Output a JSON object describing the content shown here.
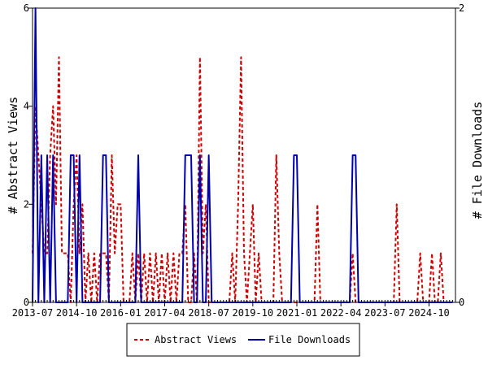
{
  "chart_data": {
    "type": "line",
    "title": "",
    "xlabel": "",
    "ylabel_left": "# Abstract Views",
    "ylabel_right": "# File Downloads",
    "x_ticks": [
      "2013-07",
      "2014-10",
      "2016-01",
      "2017-04",
      "2018-07",
      "2019-10",
      "2021-01",
      "2022-04",
      "2023-07",
      "2024-10"
    ],
    "x_range": [
      "2013-07",
      "2025-07"
    ],
    "ylim_left": [
      0,
      6
    ],
    "yticks_left": [
      "0",
      "2",
      "4",
      "6"
    ],
    "ylim_right": [
      0,
      2
    ],
    "yticks_right": [
      "0",
      "2"
    ],
    "grid": false,
    "legend_position": "bottom-center",
    "legend": [
      "Abstract Views",
      "File Downloads"
    ],
    "series": [
      {
        "name": "Abstract Views",
        "axis": "left",
        "color": "#cc0000",
        "style": "dashed",
        "points": [
          [
            "2013-07",
            1
          ],
          [
            "2013-08",
            4
          ],
          [
            "2013-09",
            3
          ],
          [
            "2013-10",
            2
          ],
          [
            "2013-11",
            1
          ],
          [
            "2013-12",
            1
          ],
          [
            "2014-01",
            3
          ],
          [
            "2014-02",
            4
          ],
          [
            "2014-03",
            2
          ],
          [
            "2014-04",
            5
          ],
          [
            "2014-05",
            1
          ],
          [
            "2014-06",
            1
          ],
          [
            "2014-07",
            1
          ],
          [
            "2014-08",
            0
          ],
          [
            "2014-09",
            2
          ],
          [
            "2014-10",
            3
          ],
          [
            "2014-11",
            1
          ],
          [
            "2014-12",
            2
          ],
          [
            "2015-01",
            0
          ],
          [
            "2015-02",
            1
          ],
          [
            "2015-03",
            0
          ],
          [
            "2015-04",
            1
          ],
          [
            "2015-05",
            0
          ],
          [
            "2015-06",
            1
          ],
          [
            "2015-07",
            1
          ],
          [
            "2015-08",
            1
          ],
          [
            "2015-09",
            0
          ],
          [
            "2015-10",
            3
          ],
          [
            "2015-11",
            1
          ],
          [
            "2015-12",
            2
          ],
          [
            "2016-01",
            2
          ],
          [
            "2016-02",
            0
          ],
          [
            "2016-03",
            0
          ],
          [
            "2016-04",
            0
          ],
          [
            "2016-05",
            1
          ],
          [
            "2016-06",
            0
          ],
          [
            "2016-07",
            1
          ],
          [
            "2016-08",
            0
          ],
          [
            "2016-09",
            1
          ],
          [
            "2016-10",
            0
          ],
          [
            "2016-11",
            1
          ],
          [
            "2016-12",
            0
          ],
          [
            "2017-01",
            1
          ],
          [
            "2017-02",
            0
          ],
          [
            "2017-03",
            1
          ],
          [
            "2017-04",
            0
          ],
          [
            "2017-05",
            1
          ],
          [
            "2017-06",
            0
          ],
          [
            "2017-07",
            1
          ],
          [
            "2017-08",
            0
          ],
          [
            "2017-09",
            1
          ],
          [
            "2017-10",
            1
          ],
          [
            "2017-11",
            2
          ],
          [
            "2017-12",
            0
          ],
          [
            "2018-01",
            0
          ],
          [
            "2018-02",
            1
          ],
          [
            "2018-03",
            0
          ],
          [
            "2018-04",
            5
          ],
          [
            "2018-05",
            1
          ],
          [
            "2018-06",
            2
          ],
          [
            "2018-07",
            0
          ],
          [
            "2018-08",
            0
          ],
          [
            "2018-09",
            0
          ],
          [
            "2018-10",
            0
          ],
          [
            "2018-11",
            0
          ],
          [
            "2018-12",
            0
          ],
          [
            "2019-01",
            0
          ],
          [
            "2019-02",
            0
          ],
          [
            "2019-03",
            1
          ],
          [
            "2019-04",
            0
          ],
          [
            "2019-05",
            2
          ],
          [
            "2019-06",
            5
          ],
          [
            "2019-07",
            1
          ],
          [
            "2019-08",
            0
          ],
          [
            "2019-09",
            1
          ],
          [
            "2019-10",
            2
          ],
          [
            "2019-11",
            0
          ],
          [
            "2019-12",
            1
          ],
          [
            "2020-01",
            0
          ],
          [
            "2020-02",
            0
          ],
          [
            "2020-03",
            0
          ],
          [
            "2020-04",
            0
          ],
          [
            "2020-05",
            0
          ],
          [
            "2020-06",
            3
          ],
          [
            "2020-07",
            1
          ],
          [
            "2020-08",
            0
          ],
          [
            "2020-09",
            0
          ],
          [
            "2020-10",
            0
          ],
          [
            "2020-11",
            0
          ],
          [
            "2020-12",
            0
          ],
          [
            "2021-01",
            0
          ],
          [
            "2021-02",
            0
          ],
          [
            "2021-03",
            0
          ],
          [
            "2021-04",
            0
          ],
          [
            "2021-05",
            0
          ],
          [
            "2021-06",
            0
          ],
          [
            "2021-07",
            0
          ],
          [
            "2021-08",
            2
          ],
          [
            "2021-09",
            0
          ],
          [
            "2021-10",
            0
          ],
          [
            "2021-11",
            0
          ],
          [
            "2021-12",
            0
          ],
          [
            "2022-01",
            0
          ],
          [
            "2022-02",
            0
          ],
          [
            "2022-03",
            0
          ],
          [
            "2022-04",
            0
          ],
          [
            "2022-05",
            0
          ],
          [
            "2022-06",
            0
          ],
          [
            "2022-07",
            0
          ],
          [
            "2022-08",
            1
          ],
          [
            "2022-09",
            0
          ],
          [
            "2022-10",
            0
          ],
          [
            "2022-11",
            0
          ],
          [
            "2022-12",
            0
          ],
          [
            "2023-01",
            0
          ],
          [
            "2023-02",
            0
          ],
          [
            "2023-03",
            0
          ],
          [
            "2023-04",
            0
          ],
          [
            "2023-05",
            0
          ],
          [
            "2023-06",
            0
          ],
          [
            "2023-07",
            0
          ],
          [
            "2023-08",
            0
          ],
          [
            "2023-09",
            0
          ],
          [
            "2023-10",
            0
          ],
          [
            "2023-11",
            2
          ],
          [
            "2023-12",
            0
          ],
          [
            "2024-01",
            0
          ],
          [
            "2024-02",
            0
          ],
          [
            "2024-03",
            0
          ],
          [
            "2024-04",
            0
          ],
          [
            "2024-05",
            0
          ],
          [
            "2024-06",
            0
          ],
          [
            "2024-07",
            1
          ],
          [
            "2024-08",
            0
          ],
          [
            "2024-09",
            0
          ],
          [
            "2024-10",
            0
          ],
          [
            "2024-11",
            1
          ],
          [
            "2024-12",
            0
          ],
          [
            "2025-01",
            0
          ],
          [
            "2025-02",
            1
          ],
          [
            "2025-03",
            0
          ],
          [
            "2025-04",
            0
          ],
          [
            "2025-05",
            0
          ],
          [
            "2025-06",
            0
          ]
        ]
      },
      {
        "name": "File Downloads",
        "axis": "right",
        "color": "#0000aa",
        "style": "solid",
        "points": [
          [
            "2013-07",
            0
          ],
          [
            "2013-08",
            2
          ],
          [
            "2013-09",
            0
          ],
          [
            "2013-10",
            1
          ],
          [
            "2013-11",
            0
          ],
          [
            "2013-12",
            1
          ],
          [
            "2014-01",
            0
          ],
          [
            "2014-02",
            1
          ],
          [
            "2014-03",
            0
          ],
          [
            "2014-04",
            0
          ],
          [
            "2014-05",
            0
          ],
          [
            "2014-06",
            0
          ],
          [
            "2014-07",
            0
          ],
          [
            "2014-08",
            1
          ],
          [
            "2014-09",
            1
          ],
          [
            "2014-10",
            0
          ],
          [
            "2014-11",
            1
          ],
          [
            "2014-12",
            0
          ],
          [
            "2015-01",
            0
          ],
          [
            "2015-02",
            0
          ],
          [
            "2015-03",
            0
          ],
          [
            "2015-04",
            0
          ],
          [
            "2015-05",
            0
          ],
          [
            "2015-06",
            0
          ],
          [
            "2015-07",
            1
          ],
          [
            "2015-08",
            1
          ],
          [
            "2015-09",
            0
          ],
          [
            "2015-10",
            0
          ],
          [
            "2015-11",
            0
          ],
          [
            "2015-12",
            0
          ],
          [
            "2016-01",
            0
          ],
          [
            "2016-02",
            0
          ],
          [
            "2016-03",
            0
          ],
          [
            "2016-04",
            0
          ],
          [
            "2016-05",
            0
          ],
          [
            "2016-06",
            0
          ],
          [
            "2016-07",
            1
          ],
          [
            "2016-08",
            0
          ],
          [
            "2016-09",
            0
          ],
          [
            "2016-10",
            0
          ],
          [
            "2016-11",
            0
          ],
          [
            "2016-12",
            0
          ],
          [
            "2017-01",
            0
          ],
          [
            "2017-02",
            0
          ],
          [
            "2017-03",
            0
          ],
          [
            "2017-04",
            0
          ],
          [
            "2017-05",
            0
          ],
          [
            "2017-06",
            0
          ],
          [
            "2017-07",
            0
          ],
          [
            "2017-08",
            0
          ],
          [
            "2017-09",
            0
          ],
          [
            "2017-10",
            0
          ],
          [
            "2017-11",
            1
          ],
          [
            "2017-12",
            1
          ],
          [
            "2018-01",
            1
          ],
          [
            "2018-02",
            0
          ],
          [
            "2018-03",
            0
          ],
          [
            "2018-04",
            1
          ],
          [
            "2018-05",
            0
          ],
          [
            "2018-06",
            0
          ],
          [
            "2018-07",
            1
          ],
          [
            "2018-08",
            0
          ],
          [
            "2018-09",
            0
          ],
          [
            "2018-10",
            0
          ],
          [
            "2018-11",
            0
          ],
          [
            "2018-12",
            0
          ],
          [
            "2019-01",
            0
          ],
          [
            "2019-02",
            0
          ],
          [
            "2019-03",
            0
          ],
          [
            "2019-04",
            0
          ],
          [
            "2019-05",
            0
          ],
          [
            "2019-06",
            0
          ],
          [
            "2019-07",
            0
          ],
          [
            "2019-08",
            0
          ],
          [
            "2019-09",
            0
          ],
          [
            "2019-10",
            0
          ],
          [
            "2019-11",
            0
          ],
          [
            "2019-12",
            0
          ],
          [
            "2020-01",
            0
          ],
          [
            "2020-02",
            0
          ],
          [
            "2020-03",
            0
          ],
          [
            "2020-04",
            0
          ],
          [
            "2020-05",
            0
          ],
          [
            "2020-06",
            0
          ],
          [
            "2020-07",
            0
          ],
          [
            "2020-08",
            0
          ],
          [
            "2020-09",
            0
          ],
          [
            "2020-10",
            0
          ],
          [
            "2020-11",
            0
          ],
          [
            "2020-12",
            1
          ],
          [
            "2021-01",
            1
          ],
          [
            "2021-02",
            0
          ],
          [
            "2021-03",
            0
          ],
          [
            "2021-04",
            0
          ],
          [
            "2021-05",
            0
          ],
          [
            "2021-06",
            0
          ],
          [
            "2021-07",
            0
          ],
          [
            "2021-08",
            0
          ],
          [
            "2021-09",
            0
          ],
          [
            "2021-10",
            0
          ],
          [
            "2021-11",
            0
          ],
          [
            "2021-12",
            0
          ],
          [
            "2022-01",
            0
          ],
          [
            "2022-02",
            0
          ],
          [
            "2022-03",
            0
          ],
          [
            "2022-04",
            0
          ],
          [
            "2022-05",
            0
          ],
          [
            "2022-06",
            0
          ],
          [
            "2022-07",
            0
          ],
          [
            "2022-08",
            1
          ],
          [
            "2022-09",
            1
          ],
          [
            "2022-10",
            0
          ],
          [
            "2022-11",
            0
          ],
          [
            "2022-12",
            0
          ],
          [
            "2023-01",
            0
          ],
          [
            "2023-02",
            0
          ],
          [
            "2023-03",
            0
          ],
          [
            "2023-04",
            0
          ],
          [
            "2023-05",
            0
          ],
          [
            "2023-06",
            0
          ],
          [
            "2023-07",
            0
          ],
          [
            "2023-08",
            0
          ],
          [
            "2023-09",
            0
          ],
          [
            "2023-10",
            0
          ],
          [
            "2023-11",
            0
          ],
          [
            "2023-12",
            0
          ],
          [
            "2024-01",
            0
          ],
          [
            "2024-02",
            0
          ],
          [
            "2024-03",
            0
          ],
          [
            "2024-04",
            0
          ],
          [
            "2024-05",
            0
          ],
          [
            "2024-06",
            0
          ],
          [
            "2024-07",
            0
          ],
          [
            "2024-08",
            0
          ],
          [
            "2024-09",
            0
          ],
          [
            "2024-10",
            0
          ],
          [
            "2024-11",
            0
          ],
          [
            "2024-12",
            0
          ],
          [
            "2025-01",
            0
          ],
          [
            "2025-02",
            0
          ],
          [
            "2025-03",
            0
          ],
          [
            "2025-04",
            0
          ],
          [
            "2025-05",
            0
          ],
          [
            "2025-06",
            0
          ]
        ]
      }
    ]
  }
}
